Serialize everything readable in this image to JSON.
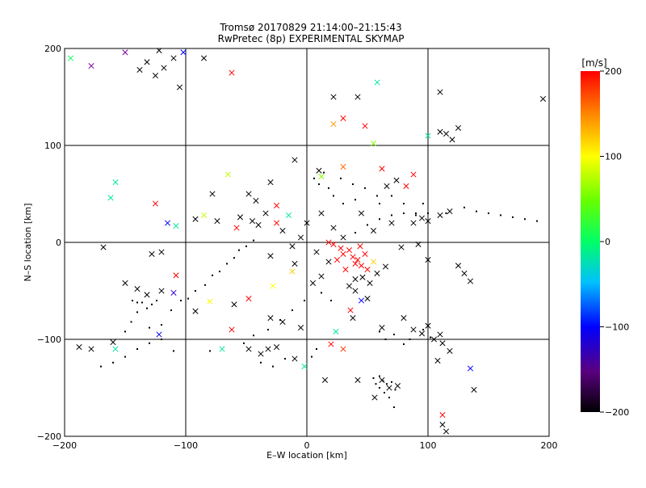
{
  "chart_data": {
    "type": "scatter",
    "title": "Tromsø 20170829 21:14:00–21:15:43",
    "subtitle": "RwPretec (8p) EXPERIMENTAL SKYMAP",
    "xlabel": "E–W location [km]",
    "ylabel": "N–S location [km]",
    "xlim": [
      -200,
      200
    ],
    "ylim": [
      -200,
      200
    ],
    "xticks": [
      "−200",
      "−100",
      "0",
      "100",
      "200"
    ],
    "yticks": [
      "−200",
      "−100",
      "0",
      "100",
      "200"
    ],
    "grid": true,
    "colorbar": {
      "label": "[m/s]",
      "range": [
        -200,
        200
      ],
      "ticks": [
        "200",
        "100",
        "0",
        "−100",
        "−200"
      ],
      "tick_values": [
        200,
        100,
        0,
        -100,
        -200
      ],
      "colors": [
        "#000000",
        "#7a00a0",
        "#0000ff",
        "#00c0ff",
        "#00ff66",
        "#66ff00",
        "#ffff00",
        "#ff8000",
        "#ff0000"
      ]
    },
    "series": [
      {
        "marker": "cross",
        "points": [
          [
            -195,
            190,
            5
          ],
          [
            -178,
            182,
            -150
          ],
          [
            -150,
            196,
            -150
          ],
          [
            -138,
            178,
            -200
          ],
          [
            -132,
            186,
            -200
          ],
          [
            -125,
            172,
            -200
          ],
          [
            -118,
            180,
            -200
          ],
          [
            -110,
            190,
            -200
          ],
          [
            -105,
            160,
            -200
          ],
          [
            -62,
            175,
            200
          ],
          [
            -85,
            190,
            -200
          ],
          [
            -122,
            198,
            -200
          ],
          [
            -102,
            196,
            -100
          ],
          [
            22,
            150,
            -200
          ],
          [
            42,
            150,
            -200
          ],
          [
            58,
            165,
            -20
          ],
          [
            110,
            155,
            -200
          ],
          [
            125,
            118,
            -200
          ],
          [
            115,
            112,
            -200
          ],
          [
            195,
            148,
            -200
          ],
          [
            22,
            122,
            140
          ],
          [
            48,
            120,
            200
          ],
          [
            30,
            128,
            200
          ],
          [
            55,
            102,
            60
          ],
          [
            100,
            110,
            -20
          ],
          [
            110,
            114,
            -200
          ],
          [
            120,
            106,
            -200
          ],
          [
            -65,
            70,
            80
          ],
          [
            -78,
            50,
            -200
          ],
          [
            -10,
            85,
            -200
          ],
          [
            -30,
            62,
            -200
          ],
          [
            10,
            74,
            -200
          ],
          [
            30,
            78,
            160
          ],
          [
            66,
            58,
            -200
          ],
          [
            74,
            64,
            -200
          ],
          [
            82,
            58,
            200
          ],
          [
            88,
            70,
            200
          ],
          [
            62,
            76,
            200
          ],
          [
            12,
            68,
            60
          ],
          [
            -158,
            62,
            -20
          ],
          [
            -162,
            46,
            -20
          ],
          [
            -125,
            40,
            200
          ],
          [
            -108,
            17,
            -20
          ],
          [
            -115,
            20,
            -100
          ],
          [
            -92,
            24,
            -200
          ],
          [
            -85,
            28,
            80
          ],
          [
            -74,
            22,
            -200
          ],
          [
            -58,
            15,
            200
          ],
          [
            -48,
            50,
            -200
          ],
          [
            -42,
            43,
            -200
          ],
          [
            -25,
            38,
            200
          ],
          [
            -34,
            30,
            -200
          ],
          [
            -55,
            26,
            -200
          ],
          [
            -40,
            18,
            -200
          ],
          [
            -20,
            12,
            -200
          ],
          [
            -120,
            -10,
            -200
          ],
          [
            -128,
            -12,
            -200
          ],
          [
            -108,
            -34,
            200
          ],
          [
            -110,
            -52,
            -120
          ],
          [
            -150,
            -42,
            -200
          ],
          [
            -140,
            -48,
            -200
          ],
          [
            -132,
            -54,
            -200
          ],
          [
            -120,
            -50,
            -200
          ],
          [
            -92,
            -71,
            -200
          ],
          [
            -80,
            -61,
            100
          ],
          [
            -60,
            -64,
            -200
          ],
          [
            -48,
            -58,
            200
          ],
          [
            -28,
            -45,
            100
          ],
          [
            -12,
            -30,
            120
          ],
          [
            -30,
            -14,
            -200
          ],
          [
            -10,
            -22,
            -200
          ],
          [
            -168,
            -5,
            -200
          ],
          [
            -188,
            -108,
            -200
          ],
          [
            -178,
            -110,
            -200
          ],
          [
            -158,
            -110,
            -20
          ],
          [
            -160,
            -103,
            -200
          ],
          [
            -122,
            -95,
            -100
          ],
          [
            -62,
            -90,
            200
          ],
          [
            -70,
            -110,
            -20
          ],
          [
            -48,
            -110,
            -200
          ],
          [
            -25,
            -108,
            -200
          ],
          [
            -30,
            -78,
            -200
          ],
          [
            -20,
            -82,
            -200
          ],
          [
            -5,
            -88,
            -200
          ],
          [
            5,
            -42,
            -200
          ],
          [
            12,
            -35,
            -200
          ],
          [
            35,
            -45,
            -200
          ],
          [
            40,
            -38,
            -200
          ],
          [
            46,
            -36,
            -200
          ],
          [
            45,
            -60,
            -100
          ],
          [
            36,
            -70,
            200
          ],
          [
            50,
            -58,
            -200
          ],
          [
            38,
            -78,
            -200
          ],
          [
            62,
            -88,
            -200
          ],
          [
            80,
            -78,
            -200
          ],
          [
            88,
            -90,
            -200
          ],
          [
            95,
            -94,
            -200
          ],
          [
            100,
            -86,
            -200
          ],
          [
            105,
            -100,
            -200
          ],
          [
            110,
            -95,
            -200
          ],
          [
            112,
            -104,
            -200
          ],
          [
            118,
            -112,
            -200
          ],
          [
            108,
            -122,
            -200
          ],
          [
            135,
            -130,
            -100
          ],
          [
            138,
            -152,
            -200
          ],
          [
            62,
            -142,
            -200
          ],
          [
            68,
            -150,
            -200
          ],
          [
            75,
            -148,
            -200
          ],
          [
            56,
            -160,
            -200
          ],
          [
            112,
            -178,
            200
          ],
          [
            115,
            -195,
            -200
          ],
          [
            112,
            -188,
            -200
          ],
          [
            20,
            -105,
            200
          ],
          [
            30,
            -110,
            180
          ],
          [
            24,
            -92,
            -20
          ],
          [
            -2,
            -128,
            -20
          ],
          [
            -10,
            -120,
            -200
          ],
          [
            -32,
            -110,
            -200
          ],
          [
            -38,
            -115,
            -200
          ],
          [
            15,
            -142,
            -200
          ],
          [
            42,
            -142,
            -200
          ],
          [
            40,
            -50,
            -200
          ],
          [
            52,
            -42,
            -200
          ],
          [
            58,
            -32,
            -200
          ],
          [
            65,
            -25,
            -200
          ],
          [
            78,
            -5,
            -200
          ],
          [
            92,
            -2,
            -200
          ],
          [
            100,
            -18,
            -200
          ],
          [
            125,
            -24,
            -200
          ],
          [
            130,
            -32,
            -200
          ],
          [
            135,
            -40,
            -200
          ],
          [
            25,
            -18,
            200
          ],
          [
            30,
            -12,
            200
          ],
          [
            35,
            -8,
            200
          ],
          [
            28,
            -6,
            200
          ],
          [
            22,
            -2,
            200
          ],
          [
            42,
            -18,
            200
          ],
          [
            45,
            -24,
            200
          ],
          [
            18,
            0,
            200
          ],
          [
            38,
            -15,
            200
          ],
          [
            50,
            -28,
            200
          ],
          [
            32,
            -28,
            200
          ],
          [
            48,
            -12,
            200
          ],
          [
            55,
            -20,
            120
          ],
          [
            40,
            -22,
            200
          ],
          [
            44,
            -4,
            200
          ],
          [
            -45,
            22,
            -200
          ],
          [
            -25,
            20,
            200
          ],
          [
            -15,
            28,
            -20
          ],
          [
            0,
            20,
            -200
          ],
          [
            12,
            30,
            -200
          ],
          [
            22,
            15,
            -200
          ],
          [
            -5,
            5,
            -200
          ],
          [
            -12,
            -4,
            -200
          ],
          [
            8,
            -10,
            -200
          ],
          [
            18,
            -20,
            -200
          ],
          [
            30,
            5,
            -200
          ],
          [
            45,
            30,
            -200
          ],
          [
            55,
            12,
            -200
          ],
          [
            70,
            20,
            -200
          ],
          [
            88,
            20,
            -200
          ],
          [
            95,
            25,
            -200
          ],
          [
            100,
            22,
            -200
          ],
          [
            110,
            28,
            -200
          ],
          [
            118,
            32,
            -200
          ]
        ]
      },
      {
        "marker": "dot",
        "points": [
          [
            -140,
            -62
          ],
          [
            -136,
            -62
          ],
          [
            -132,
            -68
          ],
          [
            -128,
            -64
          ],
          [
            -124,
            -60
          ],
          [
            -144,
            -60
          ],
          [
            -140,
            -72
          ],
          [
            -145,
            -82
          ],
          [
            -150,
            -92
          ],
          [
            -130,
            -88
          ],
          [
            -120,
            -85
          ],
          [
            -112,
            -70
          ],
          [
            -104,
            -60
          ],
          [
            -98,
            -58
          ],
          [
            -92,
            -50
          ],
          [
            -84,
            -44
          ],
          [
            -78,
            -34
          ],
          [
            -72,
            -30
          ],
          [
            -66,
            -22
          ],
          [
            -60,
            -16
          ],
          [
            -56,
            -8
          ],
          [
            -50,
            -4
          ],
          [
            -44,
            2
          ],
          [
            60,
            -138
          ],
          [
            63,
            -143
          ],
          [
            66,
            -146
          ],
          [
            70,
            -144
          ],
          [
            57,
            -146
          ],
          [
            73,
            -152
          ],
          [
            68,
            -160
          ],
          [
            64,
            -155
          ],
          [
            72,
            -170
          ],
          [
            60,
            -150
          ],
          [
            55,
            -140
          ],
          [
            60,
            -92
          ],
          [
            65,
            -100
          ],
          [
            72,
            -95
          ],
          [
            80,
            -105
          ],
          [
            85,
            -100
          ],
          [
            96,
            -90
          ],
          [
            102,
            -98
          ],
          [
            -80,
            -112
          ],
          [
            -120,
            -100
          ],
          [
            -130,
            -104
          ],
          [
            -140,
            -110
          ],
          [
            -110,
            -112
          ],
          [
            -150,
            -118
          ],
          [
            -160,
            -124
          ],
          [
            -170,
            -128
          ],
          [
            20,
            -60
          ],
          [
            12,
            -52
          ],
          [
            -2,
            -60
          ],
          [
            -12,
            -70
          ],
          [
            -22,
            -80
          ],
          [
            -32,
            -90
          ],
          [
            -44,
            -96
          ],
          [
            -52,
            -104
          ],
          [
            -38,
            -124
          ],
          [
            -28,
            -128
          ],
          [
            -18,
            -120
          ],
          [
            8,
            -110
          ],
          [
            4,
            -118
          ],
          [
            40,
            10
          ],
          [
            50,
            18
          ],
          [
            60,
            24
          ],
          [
            70,
            28
          ],
          [
            80,
            30
          ],
          [
            90,
            28
          ],
          [
            100,
            30
          ],
          [
            115,
            30
          ],
          [
            130,
            36
          ],
          [
            140,
            32
          ],
          [
            150,
            30
          ],
          [
            160,
            28
          ],
          [
            170,
            26
          ],
          [
            180,
            24
          ],
          [
            190,
            22
          ],
          [
            30,
            40
          ],
          [
            40,
            44
          ],
          [
            22,
            48
          ],
          [
            18,
            56
          ],
          [
            10,
            60
          ],
          [
            6,
            66
          ],
          [
            14,
            72
          ],
          [
            28,
            66
          ],
          [
            38,
            60
          ],
          [
            48,
            56
          ],
          [
            58,
            48
          ],
          [
            60,
            40
          ],
          [
            70,
            48
          ],
          [
            80,
            40
          ],
          [
            90,
            30
          ],
          [
            96,
            40
          ]
        ]
      }
    ]
  }
}
